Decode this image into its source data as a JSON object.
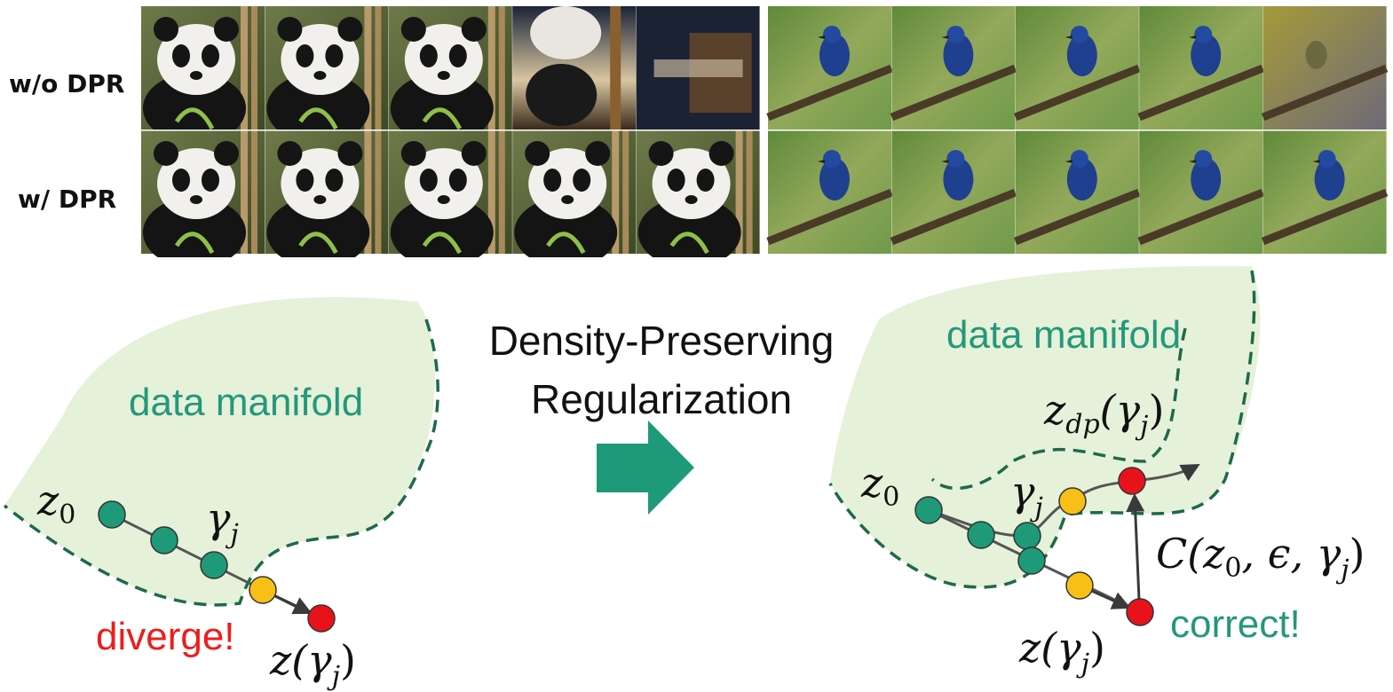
{
  "rows": {
    "without_label": "w/o DPR",
    "with_label": "w/ DPR"
  },
  "thumbnails": {
    "panda_without": [
      "panda-1",
      "panda-2",
      "panda-3",
      "panda-dark",
      "blurred-frame"
    ],
    "panda_with": [
      "panda-1",
      "panda-2",
      "panda-3",
      "panda-4",
      "panda-5"
    ],
    "bird_without": [
      "bluebird-1",
      "bluebird-2",
      "bluebird-3",
      "bluebird-4",
      "bluebird-faded"
    ],
    "bird_with": [
      "bluebird-1",
      "bluebird-2",
      "bluebird-3",
      "bluebird-4",
      "bluebird-5"
    ]
  },
  "left_panel": {
    "manifold_label": "data manifold",
    "start_label": "z",
    "start_sub": "0",
    "gamma_label": "γ",
    "gamma_sub": "j",
    "diverge_label": "diverge!",
    "end_label": "z(γ",
    "end_sub": "j",
    "end_close": ")"
  },
  "center": {
    "line1": "Density-Preserving",
    "line2": "Regularization"
  },
  "right_panel": {
    "manifold_label": "data manifold",
    "dp_label": "z",
    "dp_sub": "dp",
    "dp_arg": "(γ",
    "dp_arg_sub": "j",
    "dp_close": ")",
    "start_label": "z",
    "start_sub": "0",
    "gamma_label": "γ",
    "gamma_sub": "j",
    "c_label": "C(z",
    "c_sub0": "0",
    "c_mid": ", ϵ, γ",
    "c_subj": "j",
    "c_close": ")",
    "correct_label": "correct!",
    "end_label": "z(γ",
    "end_sub": "j",
    "end_close": ")"
  },
  "colors": {
    "manifold_fill": "#e6f1da",
    "manifold_edge": "#1e6a4a",
    "teal": "#1e9a78",
    "yellow": "#f8bf16",
    "red": "#e8121b",
    "diverge_text": "#ee1c1c",
    "label_teal": "#24987a"
  }
}
